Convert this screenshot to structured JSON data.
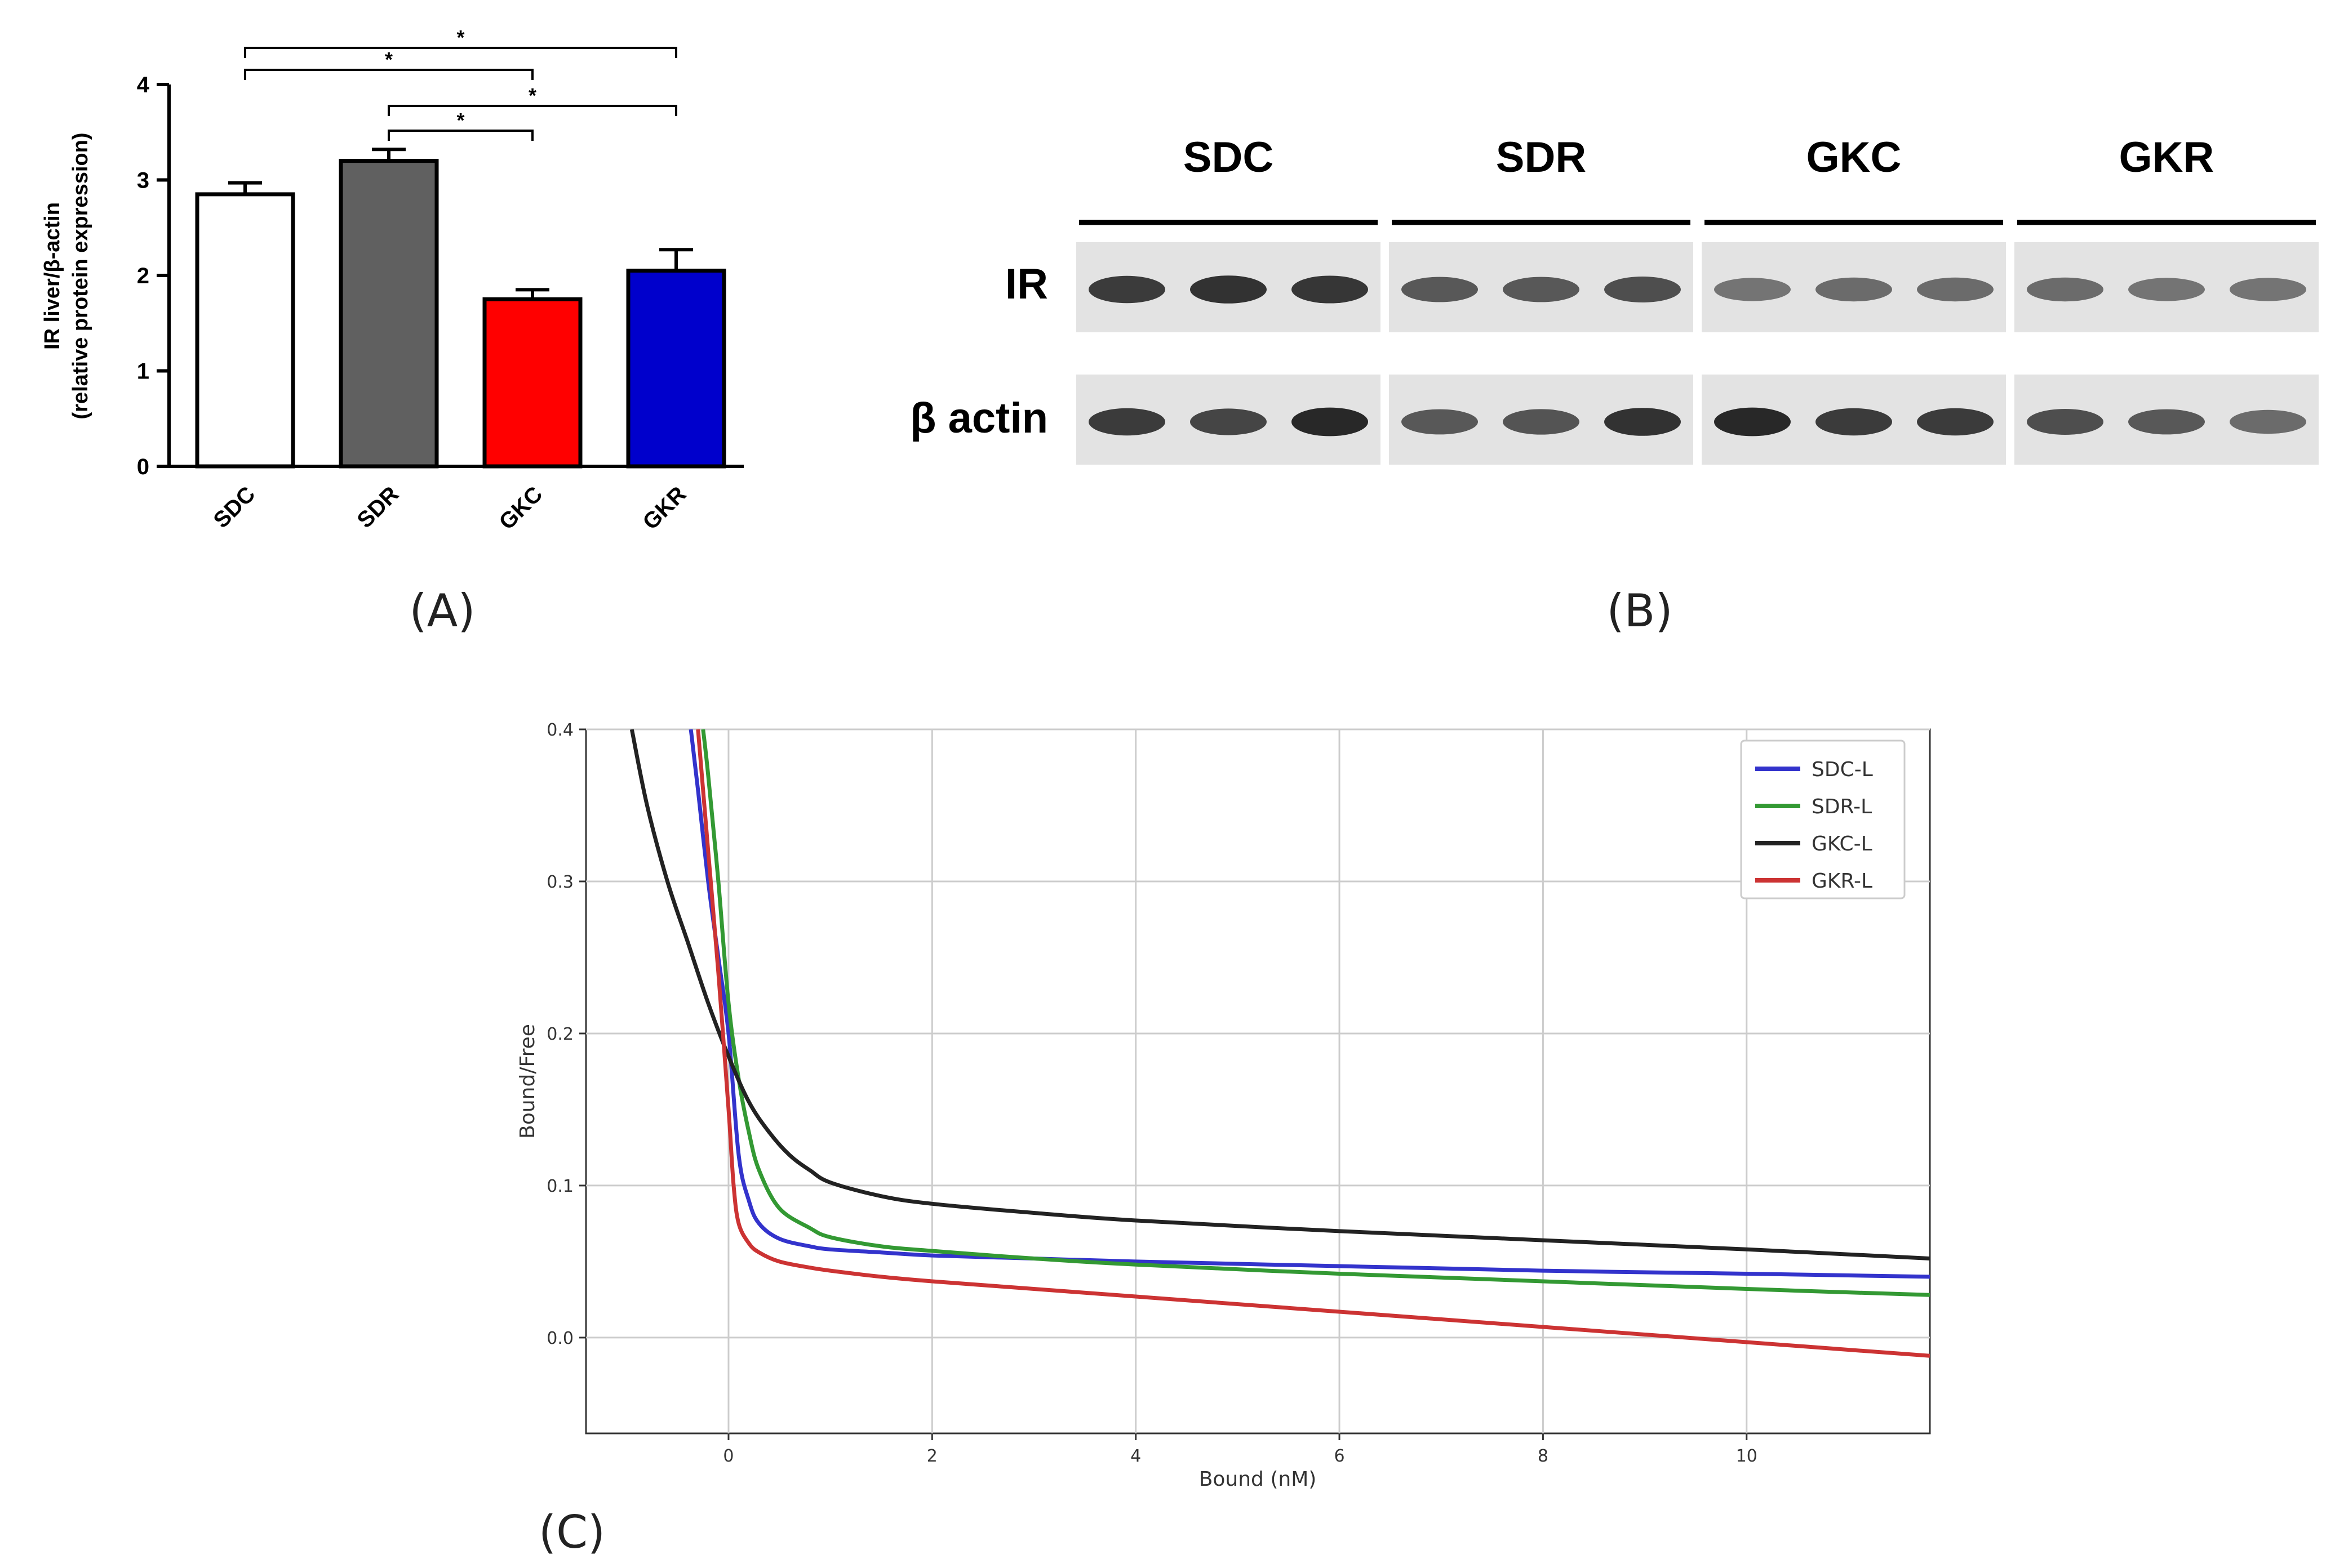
{
  "panels": {
    "a_label": "(A)",
    "b_label": "(B)",
    "c_label": "(C)"
  },
  "colors": {
    "white": "#ffffff",
    "gray": "#606060",
    "red": "#ff0000",
    "blue": "#0000cc",
    "sdc_l": "#3333cc",
    "sdr_l": "#339933",
    "gkc_l": "#222222",
    "gkr_l": "#cc3333"
  },
  "chart_data": [
    {
      "type": "bar",
      "panel": "A",
      "ylabel_line1": "IR liver/β-actin",
      "ylabel_line2": "(relative protein expression)",
      "categories": [
        "SDC",
        "SDR",
        "GKC",
        "GKR"
      ],
      "values": [
        2.85,
        3.2,
        1.75,
        2.05
      ],
      "errors": [
        0.12,
        0.12,
        0.1,
        0.22
      ],
      "bar_colors": [
        "#ffffff",
        "#606060",
        "#ff0000",
        "#0000cc"
      ],
      "ylim": [
        0,
        4
      ],
      "yticks": [
        "0",
        "1",
        "2",
        "3",
        "4"
      ],
      "significance": [
        {
          "from": 0,
          "to": 3,
          "label": "*"
        },
        {
          "from": 0,
          "to": 2,
          "label": "*"
        },
        {
          "from": 1,
          "to": 3,
          "label": "*"
        },
        {
          "from": 1,
          "to": 2,
          "label": "*"
        }
      ]
    },
    {
      "type": "line",
      "panel": "C",
      "xlabel": "Bound (nM)",
      "ylabel": "Bound/Free",
      "xlim": [
        -1.4,
        11.8
      ],
      "ylim": [
        -0.063,
        0.4
      ],
      "xticks": [
        0,
        2,
        4,
        6,
        8,
        10
      ],
      "xtick_labels": [
        "0",
        "2",
        "4",
        "6",
        "8",
        "10"
      ],
      "yticks": [
        0.0,
        0.1,
        0.2,
        0.3,
        0.4
      ],
      "ytick_labels": [
        "0.0",
        "0.1",
        "0.2",
        "0.3",
        "0.4"
      ],
      "grid": true,
      "legend_position": "top-right",
      "series": [
        {
          "name": "SDC-L",
          "color": "#3333cc",
          "x": [
            -0.37,
            -0.3,
            -0.2,
            -0.1,
            0,
            0.1,
            0.2,
            0.3,
            0.5,
            0.8,
            1.0,
            1.5,
            2,
            3,
            4,
            6,
            8,
            10,
            11.8
          ],
          "y": [
            0.4,
            0.36,
            0.3,
            0.25,
            0.2,
            0.12,
            0.09,
            0.075,
            0.065,
            0.06,
            0.058,
            0.056,
            0.054,
            0.052,
            0.05,
            0.047,
            0.044,
            0.042,
            0.04
          ]
        },
        {
          "name": "SDR-L",
          "color": "#339933",
          "x": [
            -0.25,
            -0.2,
            -0.1,
            0,
            0.1,
            0.2,
            0.3,
            0.5,
            0.8,
            1.0,
            1.5,
            2,
            3,
            4,
            6,
            8,
            10,
            11.8
          ],
          "y": [
            0.4,
            0.37,
            0.3,
            0.22,
            0.17,
            0.135,
            0.11,
            0.085,
            0.072,
            0.066,
            0.06,
            0.057,
            0.052,
            0.048,
            0.042,
            0.037,
            0.032,
            0.028
          ]
        },
        {
          "name": "GKC-L",
          "color": "#222222",
          "x": [
            -0.95,
            -0.8,
            -0.6,
            -0.4,
            -0.2,
            0,
            0.2,
            0.4,
            0.6,
            0.8,
            1.0,
            1.5,
            2,
            3,
            4,
            6,
            8,
            10,
            11.8
          ],
          "y": [
            0.4,
            0.35,
            0.3,
            0.26,
            0.22,
            0.185,
            0.155,
            0.135,
            0.12,
            0.11,
            0.102,
            0.093,
            0.088,
            0.082,
            0.077,
            0.07,
            0.064,
            0.058,
            0.052
          ]
        },
        {
          "name": "GKR-L",
          "color": "#cc3333",
          "x": [
            -0.3,
            -0.2,
            -0.1,
            0,
            0.05,
            0.1,
            0.2,
            0.3,
            0.5,
            0.8,
            1.0,
            1.5,
            2,
            3,
            4,
            6,
            8,
            10,
            11.8
          ],
          "y": [
            0.4,
            0.32,
            0.24,
            0.15,
            0.1,
            0.075,
            0.062,
            0.056,
            0.05,
            0.046,
            0.044,
            0.04,
            0.037,
            0.032,
            0.027,
            0.017,
            0.007,
            -0.003,
            -0.012
          ]
        }
      ]
    }
  ],
  "western_blot": {
    "groups": [
      "SDC",
      "SDR",
      "GKC",
      "GKR"
    ],
    "rows": [
      "IR",
      "β actin"
    ],
    "ir_band_intensity": [
      [
        0.85,
        0.9,
        0.88
      ],
      [
        0.7,
        0.7,
        0.75
      ],
      [
        0.55,
        0.6,
        0.6
      ],
      [
        0.6,
        0.55,
        0.55
      ]
    ],
    "actin_band_intensity": [
      [
        0.85,
        0.8,
        0.95
      ],
      [
        0.7,
        0.72,
        0.9
      ],
      [
        0.95,
        0.85,
        0.85
      ],
      [
        0.75,
        0.7,
        0.6
      ]
    ]
  }
}
